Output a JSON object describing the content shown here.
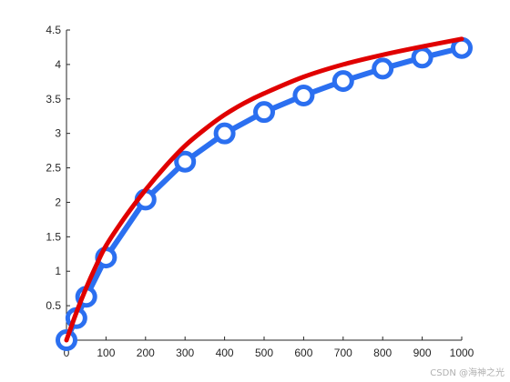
{
  "chart_data": {
    "type": "line",
    "xlim": [
      0,
      1000
    ],
    "ylim": [
      0,
      4.5
    ],
    "xticks": [
      0,
      100,
      200,
      300,
      400,
      500,
      600,
      700,
      800,
      900,
      1000
    ],
    "yticks": [
      0.5,
      1,
      1.5,
      2,
      2.5,
      3,
      3.5,
      4,
      4.5
    ],
    "grid": false,
    "legend": "none",
    "series": [
      {
        "kind": "line-with-circle-markers",
        "color": "#2b6ff0",
        "x": [
          0,
          25,
          50,
          100,
          200,
          300,
          400,
          500,
          600,
          700,
          800,
          900,
          1000
        ],
        "y": [
          0.0,
          0.32,
          0.63,
          1.2,
          2.04,
          2.59,
          3.0,
          3.31,
          3.55,
          3.76,
          3.94,
          4.1,
          4.24
        ]
      },
      {
        "kind": "smooth-line",
        "color": "#e00000",
        "x": [
          0,
          25,
          50,
          75,
          100,
          150,
          200,
          250,
          300,
          350,
          400,
          450,
          500,
          600,
          700,
          800,
          900,
          1000
        ],
        "y": [
          0.0,
          0.4,
          0.76,
          1.08,
          1.37,
          1.8,
          2.18,
          2.52,
          2.82,
          3.06,
          3.27,
          3.44,
          3.58,
          3.82,
          4.0,
          4.14,
          4.26,
          4.37
        ]
      }
    ]
  },
  "watermark": "CSDN @海神之光"
}
